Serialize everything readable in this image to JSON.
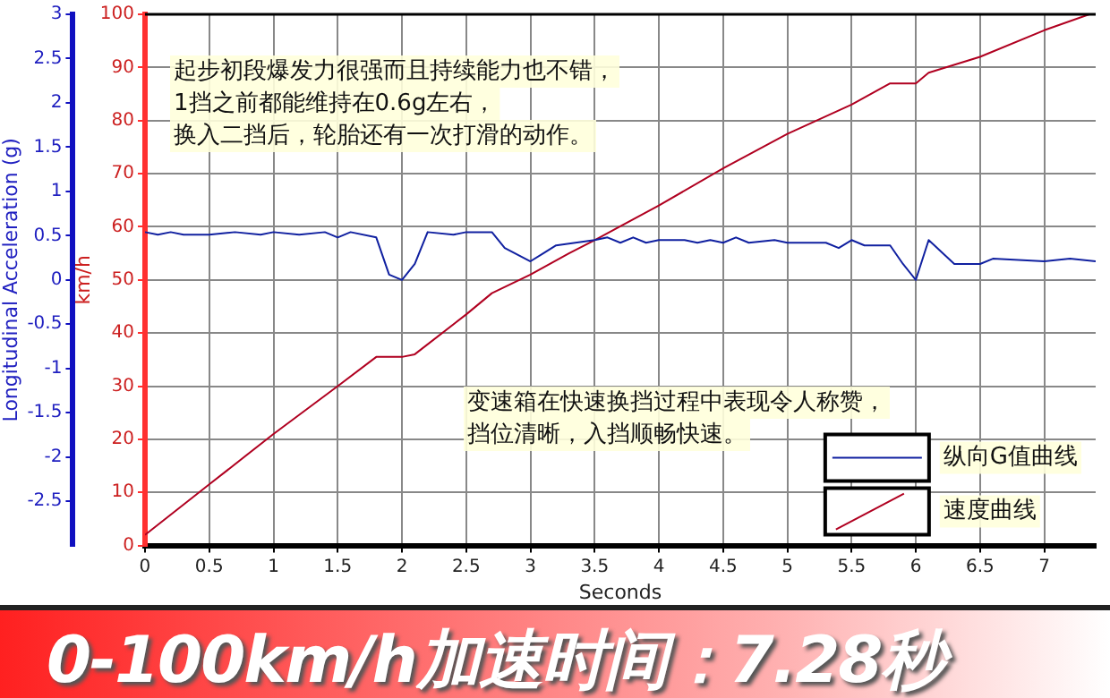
{
  "chart_data": {
    "type": "line",
    "title": "0-100km/h加速时间：7.28秒",
    "xlabel": "Seconds",
    "ylabel": "km/h",
    "y2label": "Longitudinal Acceleration (g)",
    "annotations": [
      "起步初段爆发力很强而且持续能力也不错，",
      "1挡之前都能维持在0.6g左右，",
      "换入二挡后，轮胎还有一次打滑的动作。",
      "变速箱在快速换挡过程中表现令人称赞，",
      "挡位清晰，入挡顺畅快速。"
    ],
    "series": [
      {
        "name": "纵向G值曲线",
        "color": "#1020a0",
        "axis": "y2",
        "x": [
          0,
          0.1,
          0.2,
          0.3,
          0.5,
          0.7,
          0.9,
          1,
          1.2,
          1.4,
          1.5,
          1.6,
          1.8,
          1.9,
          2,
          2.1,
          2.2,
          2.4,
          2.5,
          2.7,
          2.8,
          3,
          3.1,
          3.2,
          3.5,
          3.6,
          3.7,
          3.8,
          3.9,
          4,
          4.2,
          4.3,
          4.4,
          4.5,
          4.6,
          4.7,
          4.9,
          5,
          5.3,
          5.4,
          5.5,
          5.6,
          5.8,
          5.9,
          6,
          6.1,
          6.3,
          6.5,
          6.6,
          7,
          7.2,
          7.4
        ],
        "values": [
          0.54,
          0.51,
          0.54,
          0.51,
          0.51,
          0.54,
          0.51,
          0.54,
          0.51,
          0.54,
          0.48,
          0.54,
          0.48,
          0.06,
          0,
          0.18,
          0.54,
          0.51,
          0.54,
          0.54,
          0.36,
          0.21,
          0.3,
          0.39,
          0.45,
          0.48,
          0.42,
          0.48,
          0.42,
          0.45,
          0.45,
          0.42,
          0.45,
          0.42,
          0.48,
          0.42,
          0.45,
          0.42,
          0.42,
          0.36,
          0.45,
          0.39,
          0.39,
          0.18,
          0,
          0.45,
          0.18,
          0.18,
          0.24,
          0.21,
          0.24,
          0.21
        ]
      },
      {
        "name": "速度曲线",
        "color": "#b00020",
        "axis": "y",
        "x": [
          0,
          0.5,
          1,
          1.5,
          1.8,
          2,
          2.1,
          2.5,
          2.7,
          3,
          3.3,
          3.5,
          4,
          4.5,
          5,
          5.5,
          5.8,
          6,
          6.1,
          6.5,
          7,
          7.35
        ],
        "values": [
          2,
          11.5,
          21,
          30,
          35.5,
          35.5,
          36,
          43.5,
          47.5,
          51,
          55,
          57.5,
          64,
          71,
          77.5,
          83,
          87,
          87,
          89,
          92,
          97,
          100
        ]
      }
    ],
    "xlim": [
      0,
      7.4
    ],
    "xticks": [
      0,
      0.5,
      1,
      1.5,
      2,
      2.5,
      3,
      3.5,
      4,
      4.5,
      5,
      5.5,
      6,
      6.5,
      7
    ],
    "ylim": [
      0,
      100
    ],
    "yticks": [
      0,
      10,
      20,
      30,
      40,
      50,
      60,
      70,
      80,
      90,
      100
    ],
    "y2lim": [
      -3,
      3
    ],
    "y2ticks": [
      -2.5,
      -2,
      -1.5,
      -1,
      -0.5,
      0,
      0.5,
      1,
      1.5,
      2,
      2.5,
      3
    ],
    "grid": true,
    "legend": "bottom right",
    "marker": "none",
    "line_style": "solid"
  }
}
